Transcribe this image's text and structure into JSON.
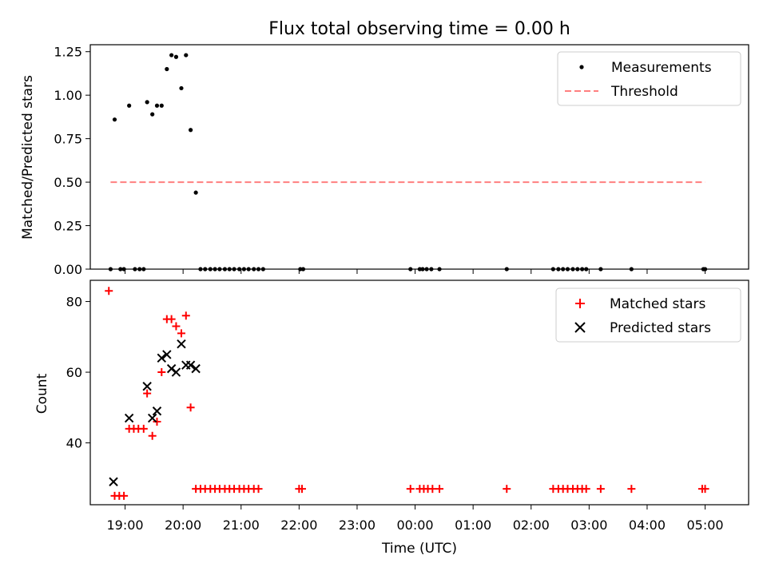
{
  "chart_data": [
    {
      "type": "scatter",
      "title": "Flux total observing time = 0.00 h",
      "xlabel": "",
      "ylabel": "Matched/Predicted stars",
      "xlim_hours": [
        18.4,
        29.75
      ],
      "ylim": [
        0,
        1.29
      ],
      "yticks": [
        0.0,
        0.25,
        0.5,
        0.75,
        1.0,
        1.25
      ],
      "ytick_labels": [
        "0.00",
        "0.25",
        "0.50",
        "0.75",
        "1.00",
        "1.25"
      ],
      "legend": [
        "Measurements",
        "Threshold"
      ],
      "legend_position": "top-right",
      "threshold": {
        "value": 0.5,
        "x_start": 18.75,
        "x_end": 29.0,
        "color": "#ff7f7f"
      },
      "series": [
        {
          "name": "Measurements",
          "marker": "dot",
          "color": "#000000",
          "points": [
            [
              18.75,
              0
            ],
            [
              18.82,
              0.86
            ],
            [
              18.92,
              0
            ],
            [
              18.98,
              0
            ],
            [
              19.07,
              0.94
            ],
            [
              19.17,
              0
            ],
            [
              19.25,
              0
            ],
            [
              19.32,
              0
            ],
            [
              19.38,
              0.96
            ],
            [
              19.47,
              0.89
            ],
            [
              19.55,
              0.94
            ],
            [
              19.63,
              0.94
            ],
            [
              19.72,
              1.15
            ],
            [
              19.8,
              1.23
            ],
            [
              19.88,
              1.22
            ],
            [
              19.97,
              1.04
            ],
            [
              20.05,
              1.23
            ],
            [
              20.13,
              0.8
            ],
            [
              20.22,
              0.44
            ],
            [
              20.3,
              0
            ],
            [
              20.38,
              0
            ],
            [
              20.47,
              0
            ],
            [
              20.55,
              0
            ],
            [
              20.63,
              0
            ],
            [
              20.72,
              0
            ],
            [
              20.8,
              0
            ],
            [
              20.88,
              0
            ],
            [
              20.97,
              0
            ],
            [
              21.05,
              0
            ],
            [
              21.13,
              0
            ],
            [
              21.22,
              0
            ],
            [
              21.3,
              0
            ],
            [
              21.38,
              0
            ],
            [
              22.02,
              0
            ],
            [
              22.07,
              0
            ],
            [
              23.92,
              0
            ],
            [
              24.08,
              0
            ],
            [
              24.13,
              0
            ],
            [
              24.2,
              0
            ],
            [
              24.28,
              0
            ],
            [
              24.42,
              0
            ],
            [
              25.58,
              0
            ],
            [
              26.38,
              0
            ],
            [
              26.47,
              0
            ],
            [
              26.55,
              0
            ],
            [
              26.63,
              0
            ],
            [
              26.72,
              0
            ],
            [
              26.8,
              0
            ],
            [
              26.88,
              0
            ],
            [
              26.95,
              0
            ],
            [
              27.2,
              0
            ],
            [
              27.73,
              0
            ],
            [
              28.97,
              0
            ],
            [
              29.0,
              0
            ]
          ]
        }
      ]
    },
    {
      "type": "scatter",
      "title": "",
      "xlabel": "Time (UTC)",
      "ylabel": "Count",
      "xlim_hours": [
        18.4,
        29.75
      ],
      "ylim": [
        22.5,
        86
      ],
      "yticks": [
        40,
        60,
        80
      ],
      "ytick_labels": [
        "40",
        "60",
        "80"
      ],
      "xticks_hours": [
        19,
        20,
        21,
        22,
        23,
        24,
        25,
        26,
        27,
        28,
        29
      ],
      "xtick_labels": [
        "19:00",
        "20:00",
        "21:00",
        "22:00",
        "23:00",
        "00:00",
        "01:00",
        "02:00",
        "03:00",
        "04:00",
        "05:00"
      ],
      "legend": [
        "Matched stars",
        "Predicted stars"
      ],
      "legend_position": "top-right",
      "series": [
        {
          "name": "Matched stars",
          "marker": "plus",
          "color": "#ff0000",
          "points": [
            [
              18.72,
              83
            ],
            [
              18.82,
              25
            ],
            [
              18.9,
              25
            ],
            [
              18.98,
              25
            ],
            [
              19.07,
              44
            ],
            [
              19.15,
              44
            ],
            [
              19.23,
              44
            ],
            [
              19.32,
              44
            ],
            [
              19.38,
              54
            ],
            [
              19.47,
              42
            ],
            [
              19.55,
              46
            ],
            [
              19.63,
              60
            ],
            [
              19.72,
              75
            ],
            [
              19.8,
              75
            ],
            [
              19.88,
              73
            ],
            [
              19.97,
              71
            ],
            [
              20.05,
              76
            ],
            [
              20.13,
              50
            ],
            [
              20.22,
              27
            ],
            [
              20.3,
              27
            ],
            [
              20.38,
              27
            ],
            [
              20.47,
              27
            ],
            [
              20.55,
              27
            ],
            [
              20.63,
              27
            ],
            [
              20.72,
              27
            ],
            [
              20.8,
              27
            ],
            [
              20.88,
              27
            ],
            [
              20.97,
              27
            ],
            [
              21.05,
              27
            ],
            [
              21.13,
              27
            ],
            [
              21.22,
              27
            ],
            [
              21.3,
              27
            ],
            [
              22.0,
              27
            ],
            [
              22.05,
              27
            ],
            [
              23.92,
              27
            ],
            [
              24.08,
              27
            ],
            [
              24.15,
              27
            ],
            [
              24.22,
              27
            ],
            [
              24.3,
              27
            ],
            [
              24.42,
              27
            ],
            [
              25.58,
              27
            ],
            [
              26.38,
              27
            ],
            [
              26.47,
              27
            ],
            [
              26.55,
              27
            ],
            [
              26.63,
              27
            ],
            [
              26.72,
              27
            ],
            [
              26.8,
              27
            ],
            [
              26.88,
              27
            ],
            [
              26.95,
              27
            ],
            [
              27.2,
              27
            ],
            [
              27.73,
              27
            ],
            [
              28.95,
              27
            ],
            [
              29.0,
              27
            ]
          ]
        },
        {
          "name": "Predicted stars",
          "marker": "x",
          "color": "#000000",
          "points": [
            [
              18.8,
              29
            ],
            [
              19.07,
              47
            ],
            [
              19.38,
              56
            ],
            [
              19.47,
              47
            ],
            [
              19.55,
              49
            ],
            [
              19.63,
              64
            ],
            [
              19.72,
              65
            ],
            [
              19.8,
              61
            ],
            [
              19.88,
              60
            ],
            [
              19.97,
              68
            ],
            [
              20.05,
              62
            ],
            [
              20.13,
              62
            ],
            [
              20.22,
              61
            ]
          ]
        }
      ]
    }
  ]
}
